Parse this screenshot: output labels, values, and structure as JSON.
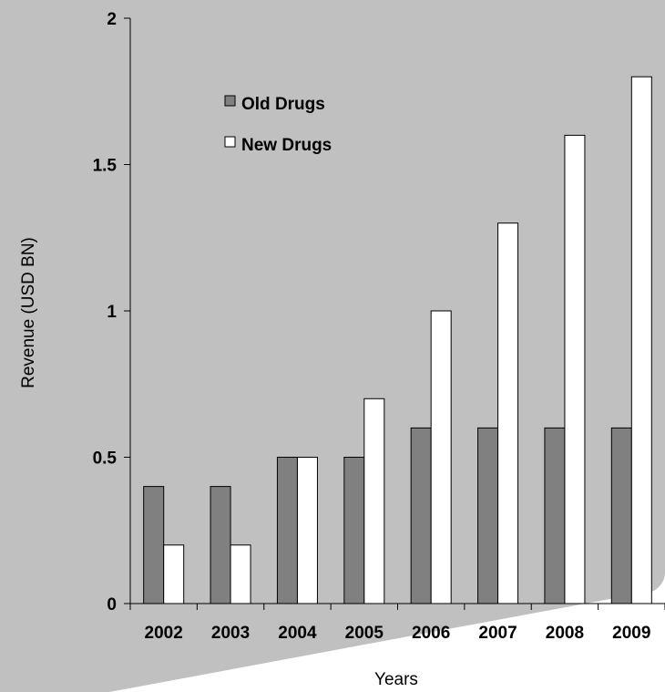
{
  "chart_data": {
    "type": "bar",
    "title": "",
    "xlabel": "Years",
    "ylabel": "Revenue (USD BN)",
    "categories": [
      "2002",
      "2003",
      "2004",
      "2005",
      "2006",
      "2007",
      "2008",
      "2009"
    ],
    "series": [
      {
        "name": "Old Drugs",
        "color": "#808080",
        "values": [
          0.4,
          0.4,
          0.5,
          0.5,
          0.6,
          0.6,
          0.6,
          0.6
        ]
      },
      {
        "name": "New Drugs",
        "color": "#ffffff",
        "values": [
          0.2,
          0.2,
          0.5,
          0.7,
          1.0,
          1.3,
          1.6,
          1.8
        ]
      }
    ],
    "ylim": [
      0,
      2
    ],
    "yticks": [
      "0",
      "0.5",
      "1",
      "1.5",
      "2"
    ],
    "ytick_values": [
      0,
      0.5,
      1,
      1.5,
      2
    ],
    "grid": false,
    "legend_position": "top-left inside plot",
    "background_color": "#c0c0c0",
    "page_color": "#ffffff"
  }
}
